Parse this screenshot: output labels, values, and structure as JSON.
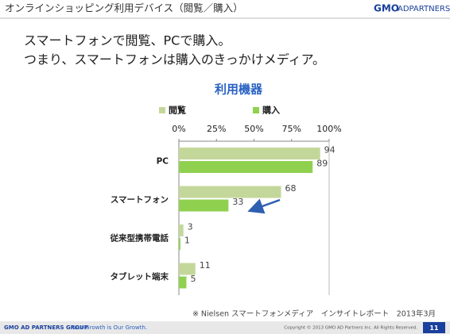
{
  "header": {
    "title": "オンラインショッピング利用デバイス（閲覧／購入）",
    "logo_mark": "GMO",
    "logo_text": "ADPARTNERS"
  },
  "body": {
    "lines": [
      "スマートフォンで閲覧、PCで購入。",
      "つまり、スマートフォンは購入のきっかけメディア。"
    ]
  },
  "chart_data": {
    "type": "bar",
    "orientation": "horizontal",
    "title": "利用機器",
    "categories": [
      "PC",
      "スマートフォン",
      "従来型携帯電話",
      "タブレット端末"
    ],
    "series": [
      {
        "name": "閲覧",
        "color": "#c4d79b",
        "values": [
          94,
          68,
          3,
          11
        ]
      },
      {
        "name": "購入",
        "color": "#8fd14f",
        "values": [
          89,
          33,
          1,
          5
        ]
      }
    ],
    "xlim": [
      0,
      100
    ],
    "xticks": [
      {
        "value": 0,
        "label": "0%"
      },
      {
        "value": 25,
        "label": "25%"
      },
      {
        "value": 50,
        "label": "50%"
      },
      {
        "value": 75,
        "label": "75%"
      },
      {
        "value": 100,
        "label": "100%"
      }
    ]
  },
  "source": "※ Nielsen スマートフォンメディア　インサイトレポート　2013年3月",
  "footer": {
    "group": "GMO AD PARTNERS GROUP",
    "tagline": "Your Growth is Our Growth.",
    "copyright": "Copyright © 2013 GMO AD Partners Inc. All Rights Reserved.",
    "page": 11
  }
}
